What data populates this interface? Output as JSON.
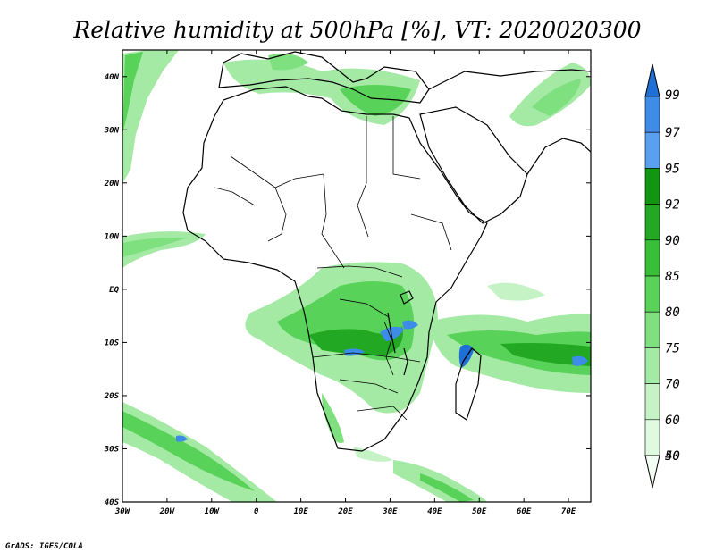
{
  "title": "Relative humidity at 500hPa [%], VT: 2020020300",
  "credit": "GrADS: IGES/COLA",
  "axes": {
    "lon_ticks": [
      "30W",
      "20W",
      "10W",
      "0",
      "10E",
      "20E",
      "30E",
      "40E",
      "50E",
      "60E",
      "70E"
    ],
    "lat_ticks": [
      "40N",
      "30N",
      "20N",
      "10N",
      "EQ",
      "10S",
      "20S",
      "30S",
      "40S"
    ],
    "lon_range": [
      -30,
      75
    ],
    "lat_range": [
      -40,
      45
    ]
  },
  "colorbar": {
    "labels": [
      "99",
      "97",
      "95",
      "92",
      "90",
      "85",
      "80",
      "75",
      "70",
      "60",
      "50",
      "40"
    ],
    "colors": [
      "#1e6fd6",
      "#3c8ce8",
      "#5aa0f0",
      "#119611",
      "#22a822",
      "#38bf38",
      "#58d258",
      "#7ee07e",
      "#a4eaa4",
      "#c6f3c6",
      "#e0fae0",
      "#f4fff4"
    ]
  }
}
